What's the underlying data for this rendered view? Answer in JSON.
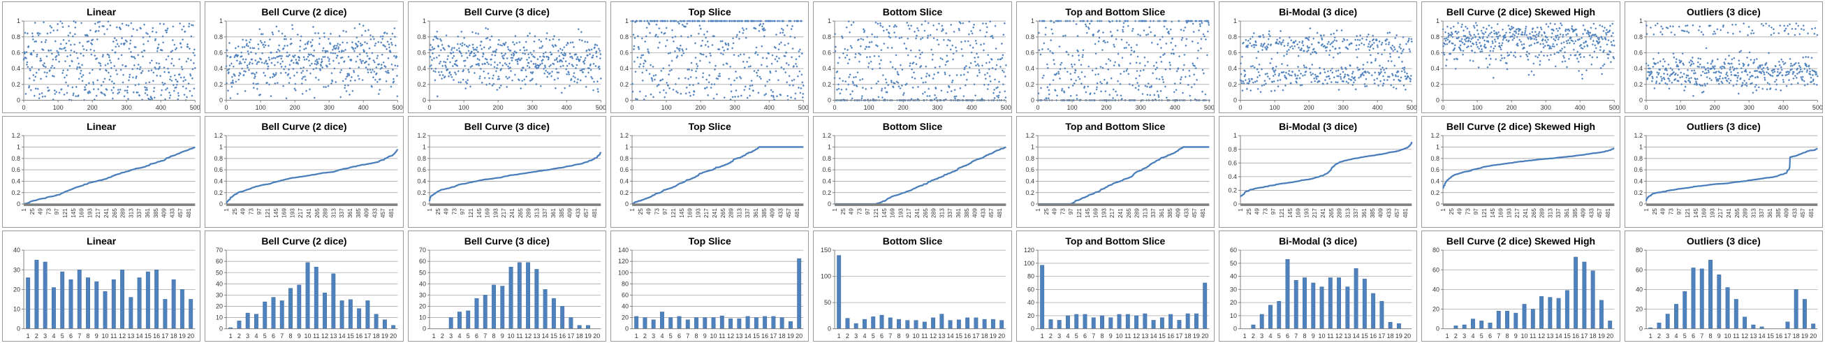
{
  "colors": {
    "marker": "#4f81bd",
    "line": "#4a7ebb",
    "bar": "#4f81bd",
    "bar_border": "#3f6da3",
    "gridline": "#a6a6a6",
    "axis": "#808080",
    "tick_label": "#333333",
    "chart_border": "#9a9a9a"
  },
  "grid": {
    "rows": 3,
    "cols": 9
  },
  "chart_data": [
    {
      "type": "scatter",
      "title": "Linear",
      "distribution": "uniform",
      "n": 500,
      "seed": 11,
      "x_ticks": [
        "0",
        "100",
        "200",
        "300",
        "400",
        "500"
      ],
      "xmax": 500,
      "y_ticks": [
        "0",
        "0.2",
        "0.4",
        "0.6",
        "0.8",
        "1"
      ],
      "ymax": 1
    },
    {
      "type": "scatter",
      "title": "Bell Curve (2 dice)",
      "distribution": "bell2",
      "n": 500,
      "seed": 22,
      "x_ticks": [
        "0",
        "100",
        "200",
        "300",
        "400",
        "500"
      ],
      "xmax": 500,
      "y_ticks": [
        "0",
        "0.2",
        "0.4",
        "0.6",
        "0.8",
        "1"
      ],
      "ymax": 1
    },
    {
      "type": "scatter",
      "title": "Bell Curve (3 dice)",
      "distribution": "bell3",
      "n": 500,
      "seed": 33,
      "x_ticks": [
        "0",
        "100",
        "200",
        "300",
        "400",
        "500"
      ],
      "xmax": 500,
      "y_ticks": [
        "0",
        "0.2",
        "0.4",
        "0.6",
        "0.8",
        "1"
      ],
      "ymax": 1
    },
    {
      "type": "scatter",
      "title": "Top Slice",
      "distribution": "top_slice",
      "n": 500,
      "seed": 44,
      "x_ticks": [
        "0",
        "100",
        "200",
        "300",
        "400",
        "500"
      ],
      "xmax": 500,
      "y_ticks": [
        "0",
        "0.2",
        "0.4",
        "0.6",
        "0.8",
        "1"
      ],
      "ymax": 1
    },
    {
      "type": "scatter",
      "title": "Bottom Slice",
      "distribution": "bottom_slice",
      "n": 500,
      "seed": 55,
      "x_ticks": [
        "0",
        "100",
        "200",
        "300",
        "400",
        "500"
      ],
      "xmax": 500,
      "y_ticks": [
        "0",
        "0.2",
        "0.4",
        "0.6",
        "0.8",
        "1"
      ],
      "ymax": 1
    },
    {
      "type": "scatter",
      "title": "Top and Bottom Slice",
      "distribution": "top_bottom_slice",
      "n": 500,
      "seed": 66,
      "x_ticks": [
        "0",
        "100",
        "200",
        "300",
        "400",
        "500"
      ],
      "xmax": 500,
      "y_ticks": [
        "0",
        "0.2",
        "0.4",
        "0.6",
        "0.8",
        "1"
      ],
      "ymax": 1
    },
    {
      "type": "scatter",
      "title": "Bi-Modal (3 dice)",
      "distribution": "bimodal3",
      "n": 500,
      "seed": 77,
      "x_ticks": [
        "0",
        "100",
        "200",
        "300",
        "400",
        "500"
      ],
      "xmax": 500,
      "y_ticks": [
        "0",
        "0.2",
        "0.4",
        "0.6",
        "0.8",
        "1"
      ],
      "ymax": 1
    },
    {
      "type": "scatter",
      "title": "Bell Curve (2 dice) Skewed High",
      "distribution": "bell2_skew_high",
      "n": 500,
      "seed": 88,
      "x_ticks": [
        "0",
        "100",
        "200",
        "300",
        "400",
        "500"
      ],
      "xmax": 500,
      "y_ticks": [
        "0",
        "0.2",
        "0.4",
        "0.6",
        "0.8",
        "1"
      ],
      "ymax": 1
    },
    {
      "type": "scatter",
      "title": "Outliers (3 dice)",
      "distribution": "outliers3",
      "n": 500,
      "seed": 99,
      "x_ticks": [
        "0",
        "100",
        "200",
        "300",
        "400",
        "500"
      ],
      "xmax": 500,
      "y_ticks": [
        "0",
        "0.2",
        "0.4",
        "0.6",
        "0.8",
        "1"
      ],
      "ymax": 1
    },
    {
      "type": "line",
      "title": "Linear",
      "distribution": "uniform",
      "sorted": true,
      "n": 500,
      "seed": 11,
      "x_ticks": [
        "1",
        "25",
        "49",
        "73",
        "97",
        "121",
        "145",
        "169",
        "193",
        "217",
        "241",
        "265",
        "289",
        "313",
        "337",
        "361",
        "385",
        "409",
        "433",
        "457",
        "481"
      ],
      "y_ticks": [
        "0",
        "0.2",
        "0.4",
        "0.6",
        "0.8",
        "1",
        "1.2"
      ],
      "ymax": 1.2
    },
    {
      "type": "line",
      "title": "Bell Curve (2 dice)",
      "distribution": "bell2",
      "sorted": true,
      "n": 500,
      "seed": 22,
      "x_ticks": [
        "1",
        "25",
        "49",
        "73",
        "97",
        "121",
        "145",
        "169",
        "193",
        "217",
        "241",
        "265",
        "289",
        "313",
        "337",
        "361",
        "385",
        "409",
        "433",
        "457",
        "481"
      ],
      "y_ticks": [
        "0",
        "0.2",
        "0.4",
        "0.6",
        "0.8",
        "1",
        "1.2"
      ],
      "ymax": 1.2
    },
    {
      "type": "line",
      "title": "Bell Curve (3 dice)",
      "distribution": "bell3",
      "sorted": true,
      "n": 500,
      "seed": 33,
      "x_ticks": [
        "1",
        "25",
        "49",
        "73",
        "97",
        "121",
        "145",
        "169",
        "193",
        "217",
        "241",
        "265",
        "289",
        "313",
        "337",
        "361",
        "385",
        "409",
        "433",
        "457",
        "481"
      ],
      "y_ticks": [
        "0",
        "0.2",
        "0.4",
        "0.6",
        "0.8",
        "1",
        "1.2"
      ],
      "ymax": 1.2
    },
    {
      "type": "line",
      "title": "Top Slice",
      "distribution": "top_slice",
      "sorted": true,
      "n": 500,
      "seed": 44,
      "x_ticks": [
        "1",
        "25",
        "49",
        "73",
        "97",
        "121",
        "145",
        "169",
        "193",
        "217",
        "241",
        "265",
        "289",
        "313",
        "337",
        "361",
        "385",
        "409",
        "433",
        "457",
        "481"
      ],
      "y_ticks": [
        "0",
        "0.2",
        "0.4",
        "0.6",
        "0.8",
        "1",
        "1.2"
      ],
      "ymax": 1.2
    },
    {
      "type": "line",
      "title": "Bottom Slice",
      "distribution": "bottom_slice",
      "sorted": true,
      "n": 500,
      "seed": 55,
      "x_ticks": [
        "1",
        "25",
        "49",
        "73",
        "97",
        "121",
        "145",
        "169",
        "193",
        "217",
        "241",
        "265",
        "289",
        "313",
        "337",
        "361",
        "385",
        "409",
        "433",
        "457",
        "481"
      ],
      "y_ticks": [
        "0",
        "0.2",
        "0.4",
        "0.6",
        "0.8",
        "1",
        "1.2"
      ],
      "ymax": 1.2
    },
    {
      "type": "line",
      "title": "Top and Bottom Slice",
      "distribution": "top_bottom_slice",
      "sorted": true,
      "n": 500,
      "seed": 66,
      "x_ticks": [
        "1",
        "25",
        "49",
        "73",
        "97",
        "121",
        "145",
        "169",
        "193",
        "217",
        "241",
        "265",
        "289",
        "313",
        "337",
        "361",
        "385",
        "409",
        "433",
        "457",
        "481"
      ],
      "y_ticks": [
        "0",
        "0.2",
        "0.4",
        "0.6",
        "0.8",
        "1",
        "1.2"
      ],
      "ymax": 1.2
    },
    {
      "type": "line",
      "title": "Bi-Modal (3 dice)",
      "distribution": "bimodal3",
      "sorted": true,
      "n": 500,
      "seed": 77,
      "x_ticks": [
        "1",
        "25",
        "49",
        "73",
        "97",
        "121",
        "145",
        "169",
        "193",
        "217",
        "241",
        "265",
        "289",
        "313",
        "337",
        "361",
        "385",
        "409",
        "433",
        "457",
        "481"
      ],
      "y_ticks": [
        "0",
        "0.2",
        "0.4",
        "0.6",
        "0.8",
        "1"
      ],
      "ymax": 1
    },
    {
      "type": "line",
      "title": "Bell Curve (2 dice) Skewed High",
      "distribution": "bell2_skew_high",
      "sorted": true,
      "n": 500,
      "seed": 88,
      "x_ticks": [
        "1",
        "25",
        "49",
        "73",
        "97",
        "121",
        "145",
        "169",
        "193",
        "217",
        "241",
        "265",
        "289",
        "313",
        "337",
        "361",
        "385",
        "409",
        "433",
        "457",
        "481"
      ],
      "y_ticks": [
        "0",
        "0.2",
        "0.4",
        "0.6",
        "0.8",
        "1",
        "1.2"
      ],
      "ymax": 1.2
    },
    {
      "type": "line",
      "title": "Outliers (3 dice)",
      "distribution": "outliers3",
      "sorted": true,
      "n": 500,
      "seed": 99,
      "x_ticks": [
        "1",
        "25",
        "49",
        "73",
        "97",
        "121",
        "145",
        "169",
        "193",
        "217",
        "241",
        "265",
        "289",
        "313",
        "337",
        "361",
        "385",
        "409",
        "433",
        "457",
        "481"
      ],
      "y_ticks": [
        "0",
        "0.2",
        "0.4",
        "0.6",
        "0.8",
        "1",
        "1.2"
      ],
      "ymax": 1.2
    },
    {
      "type": "bar",
      "title": "Linear",
      "categories": [
        "1",
        "2",
        "3",
        "4",
        "5",
        "6",
        "7",
        "8",
        "9",
        "10",
        "11",
        "12",
        "13",
        "14",
        "15",
        "16",
        "17",
        "18",
        "19",
        "20"
      ],
      "values": [
        26,
        35,
        34,
        21,
        29,
        25,
        30,
        26,
        24,
        19,
        25,
        30,
        16,
        26,
        29,
        30,
        15,
        25,
        20,
        15
      ],
      "y_ticks": [
        "0",
        "10",
        "20",
        "30",
        "40"
      ],
      "ymax": 40
    },
    {
      "type": "bar",
      "title": "Bell Curve (2 dice)",
      "categories": [
        "1",
        "2",
        "3",
        "4",
        "5",
        "6",
        "7",
        "8",
        "9",
        "10",
        "11",
        "12",
        "13",
        "14",
        "15",
        "16",
        "17",
        "18",
        "19",
        "20"
      ],
      "values": [
        1,
        7,
        14,
        13,
        24,
        28,
        25,
        36,
        39,
        59,
        55,
        32,
        49,
        25,
        26,
        18,
        25,
        13,
        8,
        3
      ],
      "y_ticks": [
        "0",
        "10",
        "20",
        "30",
        "40",
        "50",
        "60",
        "70"
      ],
      "ymax": 70
    },
    {
      "type": "bar",
      "title": "Bell Curve (3 dice)",
      "categories": [
        "1",
        "2",
        "3",
        "4",
        "5",
        "6",
        "7",
        "8",
        "9",
        "10",
        "11",
        "12",
        "13",
        "14",
        "15",
        "16",
        "17",
        "18",
        "19",
        "20"
      ],
      "values": [
        0,
        0,
        10,
        15,
        16,
        27,
        30,
        39,
        38,
        55,
        59,
        59,
        53,
        35,
        27,
        20,
        10,
        3,
        3,
        0
      ],
      "y_ticks": [
        "0",
        "10",
        "20",
        "30",
        "40",
        "50",
        "60",
        "70"
      ],
      "ymax": 70
    },
    {
      "type": "bar",
      "title": "Top Slice",
      "categories": [
        "1",
        "2",
        "3",
        "4",
        "5",
        "6",
        "7",
        "8",
        "9",
        "10",
        "11",
        "12",
        "13",
        "14",
        "15",
        "16",
        "17",
        "18",
        "19",
        "20"
      ],
      "values": [
        22,
        20,
        16,
        30,
        20,
        22,
        16,
        20,
        20,
        20,
        23,
        18,
        18,
        22,
        20,
        22,
        22,
        20,
        13,
        125
      ],
      "y_ticks": [
        "0",
        "20",
        "40",
        "60",
        "80",
        "100",
        "120",
        "140"
      ],
      "ymax": 140
    },
    {
      "type": "bar",
      "title": "Bottom Slice",
      "categories": [
        "1",
        "2",
        "3",
        "4",
        "5",
        "6",
        "7",
        "8",
        "9",
        "10",
        "11",
        "12",
        "13",
        "14",
        "15",
        "16",
        "17",
        "18",
        "19",
        "20"
      ],
      "values": [
        140,
        20,
        10,
        18,
        23,
        26,
        21,
        18,
        16,
        16,
        13,
        21,
        28,
        16,
        17,
        21,
        21,
        18,
        18,
        16
      ],
      "y_ticks": [
        "0",
        "50",
        "100",
        "150"
      ],
      "ymax": 150
    },
    {
      "type": "bar",
      "title": "Top and Bottom Slice",
      "categories": [
        "1",
        "2",
        "3",
        "4",
        "5",
        "6",
        "7",
        "8",
        "9",
        "10",
        "11",
        "12",
        "13",
        "14",
        "15",
        "16",
        "17",
        "18",
        "19",
        "20"
      ],
      "values": [
        97,
        14,
        13,
        20,
        22,
        22,
        17,
        20,
        17,
        22,
        22,
        20,
        23,
        13,
        17,
        22,
        13,
        23,
        23,
        70
      ],
      "y_ticks": [
        "0",
        "20",
        "40",
        "60",
        "80",
        "100",
        "120"
      ],
      "ymax": 120
    },
    {
      "type": "bar",
      "title": "Bi-Modal (3 dice)",
      "categories": [
        "1",
        "2",
        "3",
        "4",
        "5",
        "6",
        "7",
        "8",
        "9",
        "10",
        "11",
        "12",
        "13",
        "14",
        "15",
        "16",
        "17",
        "18",
        "19",
        "20"
      ],
      "values": [
        0,
        3,
        11,
        18,
        21,
        53,
        37,
        39,
        35,
        32,
        39,
        39,
        32,
        46,
        38,
        27,
        21,
        5,
        4,
        0
      ],
      "y_ticks": [
        "0",
        "10",
        "20",
        "30",
        "40",
        "50",
        "60"
      ],
      "ymax": 60
    },
    {
      "type": "bar",
      "title": "Bell Curve (2 dice) Skewed High",
      "categories": [
        "1",
        "2",
        "3",
        "4",
        "5",
        "6",
        "7",
        "8",
        "9",
        "10",
        "11",
        "12",
        "13",
        "14",
        "15",
        "16",
        "17",
        "18",
        "19",
        "20"
      ],
      "values": [
        0,
        3,
        4,
        10,
        8,
        6,
        18,
        18,
        16,
        25,
        20,
        33,
        32,
        31,
        39,
        73,
        68,
        59,
        29,
        8
      ],
      "y_ticks": [
        "0",
        "20",
        "40",
        "60",
        "80"
      ],
      "ymax": 80
    },
    {
      "type": "bar",
      "title": "Outliers (3 dice)",
      "categories": [
        "1",
        "2",
        "3",
        "4",
        "5",
        "6",
        "7",
        "8",
        "9",
        "10",
        "11",
        "12",
        "13",
        "14",
        "15",
        "16",
        "17",
        "18",
        "19",
        "20"
      ],
      "values": [
        1,
        6,
        15,
        25,
        38,
        62,
        61,
        70,
        55,
        42,
        30,
        12,
        4,
        2,
        0,
        0,
        7,
        40,
        30,
        5
      ],
      "y_ticks": [
        "0",
        "20",
        "40",
        "60",
        "80"
      ],
      "ymax": 80
    }
  ]
}
